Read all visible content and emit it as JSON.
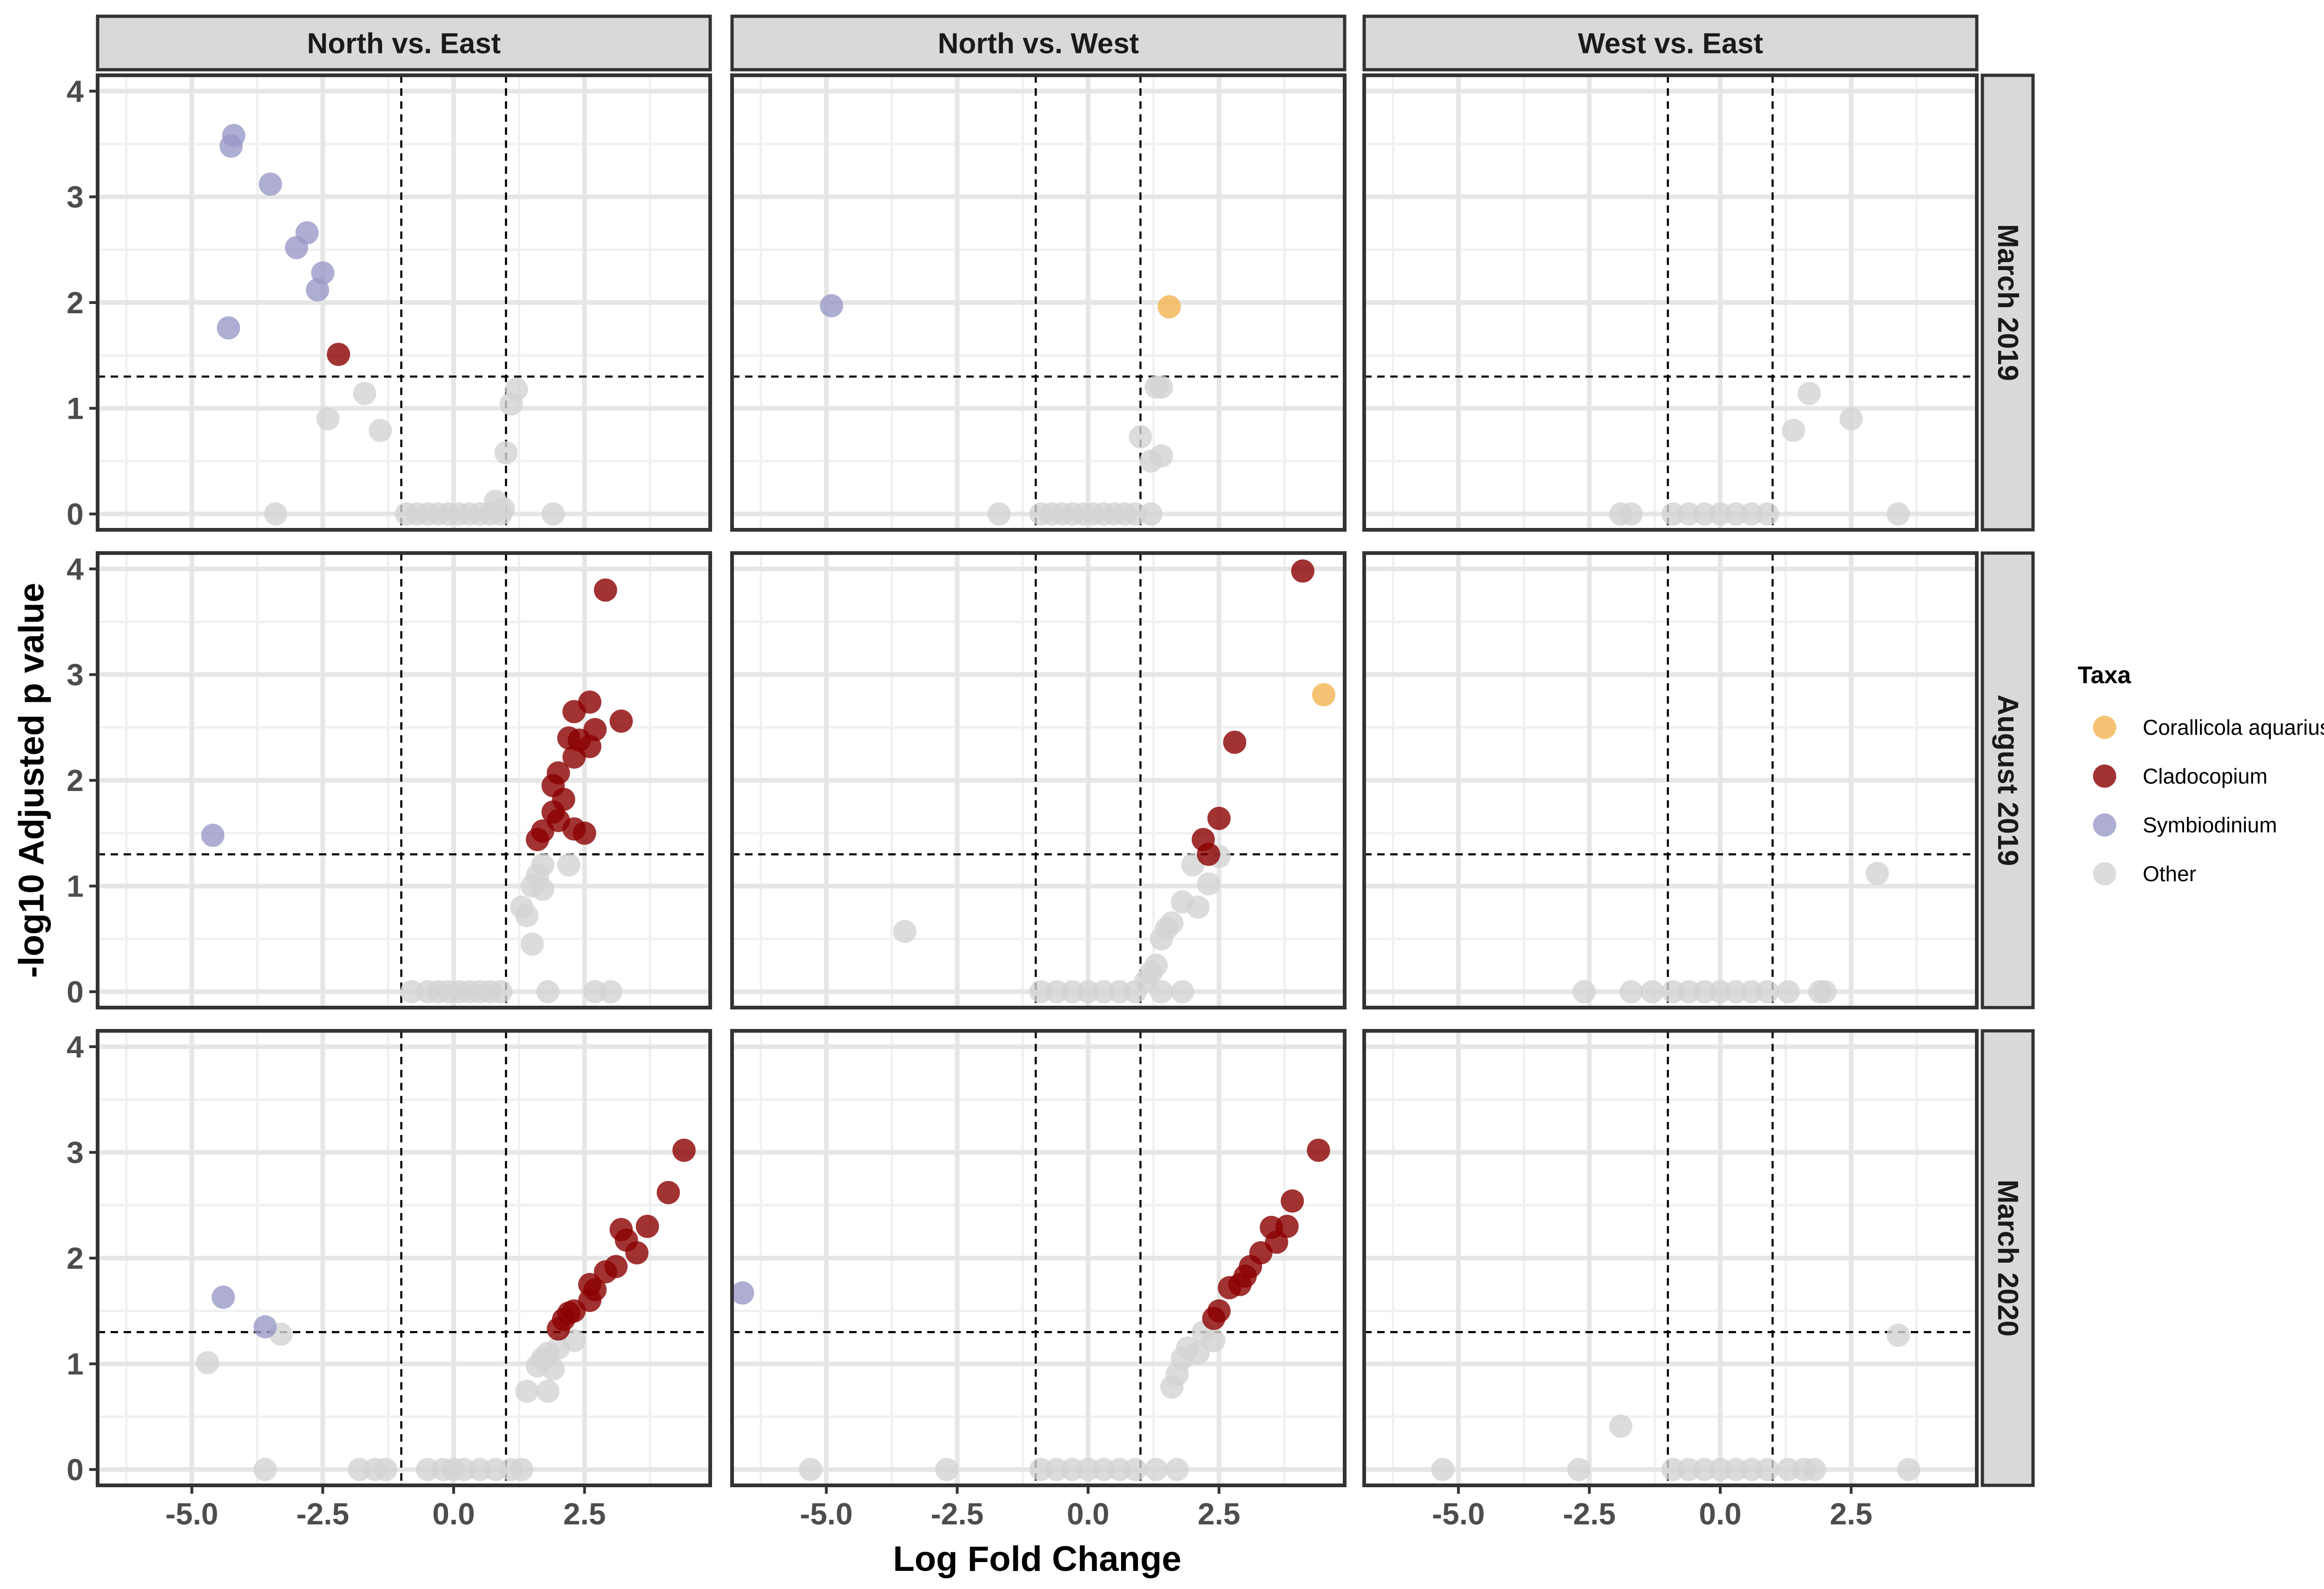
{
  "chart_data": {
    "type": "scatter",
    "xlabel": "Log Fold Change",
    "ylabel": "-log10 Adjusted p value",
    "xlim": [
      -6.8,
      4.9
    ],
    "ylim": [
      -0.15,
      4.15
    ],
    "x_ticks": [
      -5,
      -2.5,
      0,
      2.5
    ],
    "x_tick_labels": [
      "-5.0",
      "-2.5",
      "0.0",
      "2.5"
    ],
    "y_ticks": [
      0,
      1,
      2,
      3,
      4
    ],
    "y_tick_labels": [
      "0",
      "1",
      "2",
      "3",
      "4"
    ],
    "grid": true,
    "threshold_lines": {
      "x": [
        -1,
        1
      ],
      "y": 1.3
    },
    "columns": [
      "North vs. East",
      "North vs. West",
      "West vs. East"
    ],
    "rows": [
      "March 2019",
      "August 2019",
      "March 2020"
    ],
    "legend": {
      "title": "Taxa",
      "position": "right",
      "entries": [
        {
          "name": "Corallicola aquarius",
          "color": "#F4B350"
        },
        {
          "name": "Cladocopium",
          "color": "#8B0000"
        },
        {
          "name": "Symbiodinium",
          "color": "#9A98C8"
        },
        {
          "name": "Other",
          "color": "#D3D3D3"
        }
      ]
    },
    "panels": [
      {
        "row": 0,
        "col": 0,
        "points": [
          [
            -4.2,
            3.58,
            "S"
          ],
          [
            -4.25,
            3.48,
            "S"
          ],
          [
            -3.5,
            3.12,
            "S"
          ],
          [
            -2.8,
            2.66,
            "S"
          ],
          [
            -3.0,
            2.52,
            "S"
          ],
          [
            -2.5,
            2.28,
            "S"
          ],
          [
            -2.6,
            2.12,
            "S"
          ],
          [
            -4.3,
            1.76,
            "S"
          ],
          [
            -2.2,
            1.51,
            "C"
          ],
          [
            -1.7,
            1.14,
            "O"
          ],
          [
            -2.4,
            0.9,
            "O"
          ],
          [
            -1.4,
            0.79,
            "O"
          ],
          [
            -3.4,
            0.0,
            "O"
          ],
          [
            1.2,
            1.18,
            "O"
          ],
          [
            1.1,
            1.04,
            "O"
          ],
          [
            1.0,
            0.58,
            "O"
          ],
          [
            0.8,
            0.12,
            "O"
          ],
          [
            1.9,
            0.0,
            "O"
          ],
          [
            -0.9,
            0.0,
            "O"
          ],
          [
            -0.7,
            0.0,
            "O"
          ],
          [
            -0.5,
            0.0,
            "O"
          ],
          [
            -0.3,
            0.0,
            "O"
          ],
          [
            -0.1,
            0.0,
            "O"
          ],
          [
            0.1,
            0.0,
            "O"
          ],
          [
            0.3,
            0.0,
            "O"
          ],
          [
            0.5,
            0.0,
            "O"
          ],
          [
            0.7,
            0.0,
            "O"
          ],
          [
            0.9,
            0.0,
            "O"
          ],
          [
            0.95,
            0.05,
            "O"
          ]
        ]
      },
      {
        "row": 0,
        "col": 1,
        "points": [
          [
            -4.9,
            1.97,
            "S"
          ],
          [
            1.55,
            1.96,
            "CA"
          ],
          [
            1.4,
            1.2,
            "O"
          ],
          [
            1.3,
            1.2,
            "O"
          ],
          [
            1.0,
            0.73,
            "O"
          ],
          [
            1.4,
            0.55,
            "O"
          ],
          [
            1.2,
            0.5,
            "O"
          ],
          [
            -1.7,
            0.0,
            "O"
          ],
          [
            -0.9,
            0.0,
            "O"
          ],
          [
            -0.7,
            0.0,
            "O"
          ],
          [
            -0.5,
            0.0,
            "O"
          ],
          [
            -0.3,
            0.0,
            "O"
          ],
          [
            -0.1,
            0.0,
            "O"
          ],
          [
            0.1,
            0.0,
            "O"
          ],
          [
            0.3,
            0.0,
            "O"
          ],
          [
            0.5,
            0.0,
            "O"
          ],
          [
            0.7,
            0.0,
            "O"
          ],
          [
            0.9,
            0.0,
            "O"
          ],
          [
            1.2,
            0.0,
            "O"
          ]
        ]
      },
      {
        "row": 0,
        "col": 2,
        "points": [
          [
            1.7,
            1.14,
            "O"
          ],
          [
            2.5,
            0.9,
            "O"
          ],
          [
            1.4,
            0.79,
            "O"
          ],
          [
            3.4,
            0.0,
            "O"
          ],
          [
            -1.9,
            0.0,
            "O"
          ],
          [
            -1.7,
            0.0,
            "O"
          ],
          [
            -0.9,
            0.0,
            "O"
          ],
          [
            -0.6,
            0.0,
            "O"
          ],
          [
            -0.3,
            0.0,
            "O"
          ],
          [
            0.0,
            0.0,
            "O"
          ],
          [
            0.3,
            0.0,
            "O"
          ],
          [
            0.6,
            0.0,
            "O"
          ],
          [
            0.9,
            0.0,
            "O"
          ]
        ]
      },
      {
        "row": 1,
        "col": 0,
        "points": [
          [
            -4.6,
            1.48,
            "S"
          ],
          [
            2.9,
            3.8,
            "C"
          ],
          [
            2.6,
            2.74,
            "C"
          ],
          [
            2.3,
            2.65,
            "C"
          ],
          [
            3.2,
            2.56,
            "C"
          ],
          [
            2.7,
            2.48,
            "C"
          ],
          [
            2.2,
            2.4,
            "C"
          ],
          [
            2.4,
            2.38,
            "C"
          ],
          [
            2.6,
            2.32,
            "C"
          ],
          [
            2.3,
            2.22,
            "C"
          ],
          [
            2.0,
            2.07,
            "C"
          ],
          [
            1.9,
            1.95,
            "C"
          ],
          [
            2.1,
            1.82,
            "C"
          ],
          [
            1.9,
            1.7,
            "C"
          ],
          [
            2.0,
            1.62,
            "C"
          ],
          [
            1.7,
            1.52,
            "C"
          ],
          [
            2.3,
            1.54,
            "C"
          ],
          [
            2.5,
            1.5,
            "C"
          ],
          [
            1.6,
            1.44,
            "C"
          ],
          [
            2.2,
            1.2,
            "O"
          ],
          [
            1.7,
            1.2,
            "O"
          ],
          [
            1.6,
            1.1,
            "O"
          ],
          [
            1.5,
            1.0,
            "O"
          ],
          [
            1.7,
            0.97,
            "O"
          ],
          [
            1.3,
            0.8,
            "O"
          ],
          [
            1.4,
            0.72,
            "O"
          ],
          [
            1.5,
            0.45,
            "O"
          ],
          [
            2.7,
            0.0,
            "O"
          ],
          [
            3.0,
            0.0,
            "O"
          ],
          [
            1.8,
            0.0,
            "O"
          ],
          [
            -0.5,
            0.0,
            "O"
          ],
          [
            -0.3,
            0.0,
            "O"
          ],
          [
            -0.1,
            0.0,
            "O"
          ],
          [
            0.1,
            0.0,
            "O"
          ],
          [
            0.3,
            0.0,
            "O"
          ],
          [
            0.5,
            0.0,
            "O"
          ],
          [
            0.7,
            0.0,
            "O"
          ],
          [
            0.9,
            0.0,
            "O"
          ],
          [
            -0.8,
            0.0,
            "O"
          ]
        ]
      },
      {
        "row": 1,
        "col": 1,
        "points": [
          [
            4.1,
            3.98,
            "C"
          ],
          [
            2.8,
            2.36,
            "C"
          ],
          [
            2.5,
            1.64,
            "C"
          ],
          [
            2.2,
            1.44,
            "C"
          ],
          [
            2.3,
            1.3,
            "C"
          ],
          [
            4.5,
            2.81,
            "CA"
          ],
          [
            -3.5,
            0.57,
            "O"
          ],
          [
            2.5,
            1.28,
            "O"
          ],
          [
            2.0,
            1.2,
            "O"
          ],
          [
            2.3,
            1.02,
            "O"
          ],
          [
            1.8,
            0.85,
            "O"
          ],
          [
            2.1,
            0.8,
            "O"
          ],
          [
            1.6,
            0.65,
            "O"
          ],
          [
            1.5,
            0.6,
            "O"
          ],
          [
            1.4,
            0.5,
            "O"
          ],
          [
            1.3,
            0.25,
            "O"
          ],
          [
            1.2,
            0.18,
            "O"
          ],
          [
            1.1,
            0.1,
            "O"
          ],
          [
            -0.9,
            0.0,
            "O"
          ],
          [
            -0.6,
            0.0,
            "O"
          ],
          [
            -0.3,
            0.0,
            "O"
          ],
          [
            0.0,
            0.0,
            "O"
          ],
          [
            0.3,
            0.0,
            "O"
          ],
          [
            0.6,
            0.0,
            "O"
          ],
          [
            0.9,
            0.0,
            "O"
          ],
          [
            1.4,
            0.0,
            "O"
          ],
          [
            1.8,
            0.0,
            "O"
          ]
        ]
      },
      {
        "row": 1,
        "col": 2,
        "points": [
          [
            3.0,
            1.12,
            "O"
          ],
          [
            -2.6,
            0.0,
            "O"
          ],
          [
            -1.7,
            0.0,
            "O"
          ],
          [
            -1.3,
            0.0,
            "O"
          ],
          [
            -0.9,
            0.0,
            "O"
          ],
          [
            -0.6,
            0.0,
            "O"
          ],
          [
            -0.3,
            0.0,
            "O"
          ],
          [
            0.0,
            0.0,
            "O"
          ],
          [
            0.3,
            0.0,
            "O"
          ],
          [
            0.6,
            0.0,
            "O"
          ],
          [
            0.9,
            0.0,
            "O"
          ],
          [
            1.3,
            0.0,
            "O"
          ],
          [
            1.9,
            0.0,
            "O"
          ],
          [
            2.0,
            0.0,
            "O"
          ]
        ]
      },
      {
        "row": 2,
        "col": 0,
        "points": [
          [
            -4.4,
            1.63,
            "S"
          ],
          [
            -3.6,
            1.35,
            "S"
          ],
          [
            4.4,
            3.02,
            "C"
          ],
          [
            4.1,
            2.62,
            "C"
          ],
          [
            3.7,
            2.3,
            "C"
          ],
          [
            3.2,
            2.27,
            "C"
          ],
          [
            3.3,
            2.17,
            "C"
          ],
          [
            3.5,
            2.05,
            "C"
          ],
          [
            3.1,
            1.92,
            "C"
          ],
          [
            2.9,
            1.87,
            "C"
          ],
          [
            2.6,
            1.75,
            "C"
          ],
          [
            2.7,
            1.7,
            "C"
          ],
          [
            2.6,
            1.6,
            "C"
          ],
          [
            2.3,
            1.5,
            "C"
          ],
          [
            2.2,
            1.48,
            "C"
          ],
          [
            2.1,
            1.42,
            "C"
          ],
          [
            2.0,
            1.33,
            "C"
          ],
          [
            -3.3,
            1.28,
            "O"
          ],
          [
            -4.7,
            1.01,
            "O"
          ],
          [
            -3.6,
            0.0,
            "O"
          ],
          [
            2.3,
            1.22,
            "O"
          ],
          [
            2.0,
            1.15,
            "O"
          ],
          [
            1.8,
            1.1,
            "O"
          ],
          [
            1.7,
            1.05,
            "O"
          ],
          [
            1.6,
            0.98,
            "O"
          ],
          [
            1.9,
            0.95,
            "O"
          ],
          [
            1.4,
            0.74,
            "O"
          ],
          [
            1.8,
            0.74,
            "O"
          ],
          [
            -1.8,
            0.0,
            "O"
          ],
          [
            -1.5,
            0.0,
            "O"
          ],
          [
            -1.3,
            0.0,
            "O"
          ],
          [
            -0.5,
            0.0,
            "O"
          ],
          [
            -0.2,
            0.0,
            "O"
          ],
          [
            0.0,
            0.0,
            "O"
          ],
          [
            0.2,
            0.0,
            "O"
          ],
          [
            0.5,
            0.0,
            "O"
          ],
          [
            0.8,
            0.0,
            "O"
          ],
          [
            1.1,
            0.0,
            "O"
          ],
          [
            1.3,
            0.0,
            "O"
          ]
        ]
      },
      {
        "row": 2,
        "col": 1,
        "points": [
          [
            -6.6,
            1.67,
            "S"
          ],
          [
            4.4,
            3.02,
            "C"
          ],
          [
            3.9,
            2.54,
            "C"
          ],
          [
            3.5,
            2.29,
            "C"
          ],
          [
            3.8,
            2.3,
            "C"
          ],
          [
            3.6,
            2.15,
            "C"
          ],
          [
            3.3,
            2.05,
            "C"
          ],
          [
            3.1,
            1.92,
            "C"
          ],
          [
            3.0,
            1.83,
            "C"
          ],
          [
            2.7,
            1.72,
            "C"
          ],
          [
            2.9,
            1.75,
            "C"
          ],
          [
            2.5,
            1.5,
            "C"
          ],
          [
            2.4,
            1.43,
            "C"
          ],
          [
            -5.3,
            0.0,
            "O"
          ],
          [
            -2.7,
            0.0,
            "O"
          ],
          [
            2.2,
            1.3,
            "O"
          ],
          [
            2.4,
            1.22,
            "O"
          ],
          [
            1.9,
            1.15,
            "O"
          ],
          [
            2.1,
            1.1,
            "O"
          ],
          [
            1.8,
            1.05,
            "O"
          ],
          [
            1.7,
            0.9,
            "O"
          ],
          [
            1.6,
            0.78,
            "O"
          ],
          [
            -0.9,
            0.0,
            "O"
          ],
          [
            -0.6,
            0.0,
            "O"
          ],
          [
            -0.3,
            0.0,
            "O"
          ],
          [
            0.0,
            0.0,
            "O"
          ],
          [
            0.3,
            0.0,
            "O"
          ],
          [
            0.6,
            0.0,
            "O"
          ],
          [
            0.9,
            0.0,
            "O"
          ],
          [
            1.3,
            0.0,
            "O"
          ],
          [
            1.7,
            0.0,
            "O"
          ]
        ]
      },
      {
        "row": 2,
        "col": 2,
        "points": [
          [
            3.4,
            1.27,
            "O"
          ],
          [
            -1.9,
            0.41,
            "O"
          ],
          [
            -5.3,
            0.0,
            "O"
          ],
          [
            -2.7,
            0.0,
            "O"
          ],
          [
            3.6,
            0.0,
            "O"
          ],
          [
            -0.9,
            0.0,
            "O"
          ],
          [
            -0.6,
            0.0,
            "O"
          ],
          [
            -0.3,
            0.0,
            "O"
          ],
          [
            0.0,
            0.0,
            "O"
          ],
          [
            0.3,
            0.0,
            "O"
          ],
          [
            0.6,
            0.0,
            "O"
          ],
          [
            0.9,
            0.0,
            "O"
          ],
          [
            1.3,
            0.0,
            "O"
          ],
          [
            1.6,
            0.0,
            "O"
          ],
          [
            1.8,
            0.0,
            "O"
          ]
        ]
      }
    ],
    "category_codes": {
      "CA": "Corallicola aquarius",
      "C": "Cladocopium",
      "S": "Symbiodinium",
      "O": "Other"
    }
  }
}
